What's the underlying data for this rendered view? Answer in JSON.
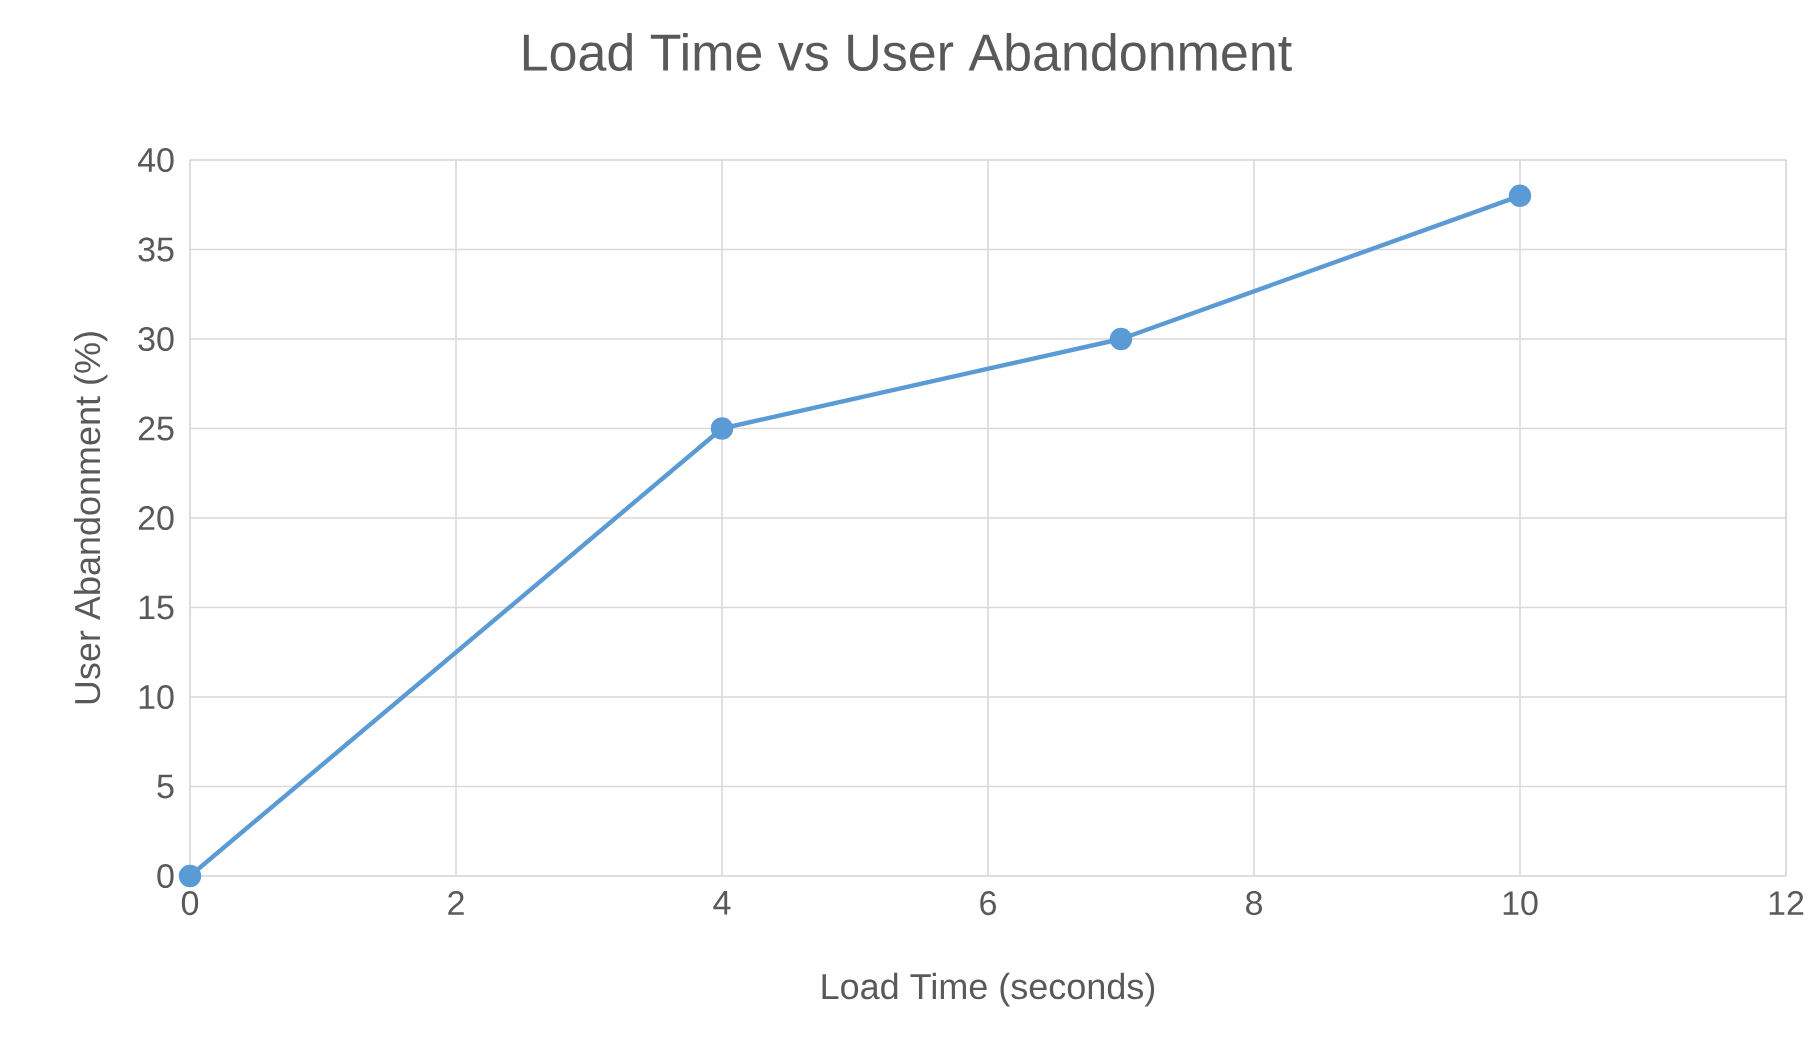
{
  "chart_data": {
    "type": "line",
    "title": "Load Time vs User Abandonment",
    "xlabel": "Load Time (seconds)",
    "ylabel": "User Abandonment (%)",
    "x": [
      0,
      4,
      7,
      10
    ],
    "series": [
      {
        "color": "#5b9bd5",
        "values": [
          0,
          25,
          30,
          38
        ]
      }
    ],
    "xlim": [
      0,
      12
    ],
    "xticks": [
      0,
      2,
      4,
      6,
      8,
      10,
      12
    ],
    "ylim": [
      0,
      40
    ],
    "yticks": [
      0,
      5,
      10,
      15,
      20,
      25,
      30,
      35,
      40
    ],
    "grid": true,
    "marker": "circle",
    "line_style": "solid"
  }
}
